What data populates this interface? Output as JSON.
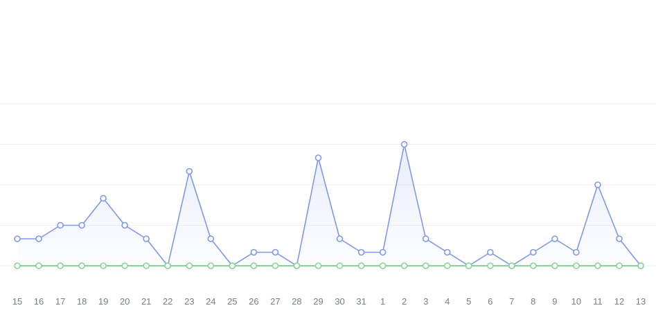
{
  "chart_data": {
    "type": "area",
    "title": "",
    "xlabel": "",
    "ylabel": "",
    "categories": [
      "15",
      "16",
      "17",
      "18",
      "19",
      "20",
      "21",
      "22",
      "23",
      "24",
      "25",
      "26",
      "27",
      "28",
      "29",
      "30",
      "31",
      "1",
      "2",
      "3",
      "4",
      "5",
      "6",
      "7",
      "8",
      "9",
      "10",
      "11",
      "12",
      "13"
    ],
    "series": [
      {
        "name": "series-blue",
        "color": "#7e97e8",
        "marker_fill": "#ffffff",
        "area_fill_top": "rgba(125,150,232,0.22)",
        "area_fill_bottom": "rgba(125,150,232,0.02)",
        "values": [
          2,
          2,
          3,
          3,
          5,
          3,
          2,
          0,
          7,
          2,
          0,
          1,
          1,
          0,
          8,
          2,
          1,
          1,
          9,
          2,
          1,
          0,
          1,
          0,
          1,
          2,
          1,
          6,
          2,
          0
        ]
      },
      {
        "name": "series-green",
        "color": "#83d593",
        "marker_fill": "#ffffff",
        "area_fill_top": "rgba(131,213,147,0)",
        "area_fill_bottom": "rgba(131,213,147,0)",
        "values": [
          0,
          0,
          0,
          0,
          0,
          0,
          0,
          0,
          0,
          0,
          0,
          0,
          0,
          0,
          0,
          0,
          0,
          0,
          0,
          0,
          0,
          0,
          0,
          0,
          0,
          0,
          0,
          0,
          0,
          0
        ]
      }
    ],
    "ylim": [
      0,
      12
    ],
    "grid": "on",
    "grid_values": [
      0,
      3,
      6,
      9,
      12
    ],
    "grid_color": "#efeff1",
    "legend_position": "none",
    "axis_tick_color": "#767d83"
  }
}
